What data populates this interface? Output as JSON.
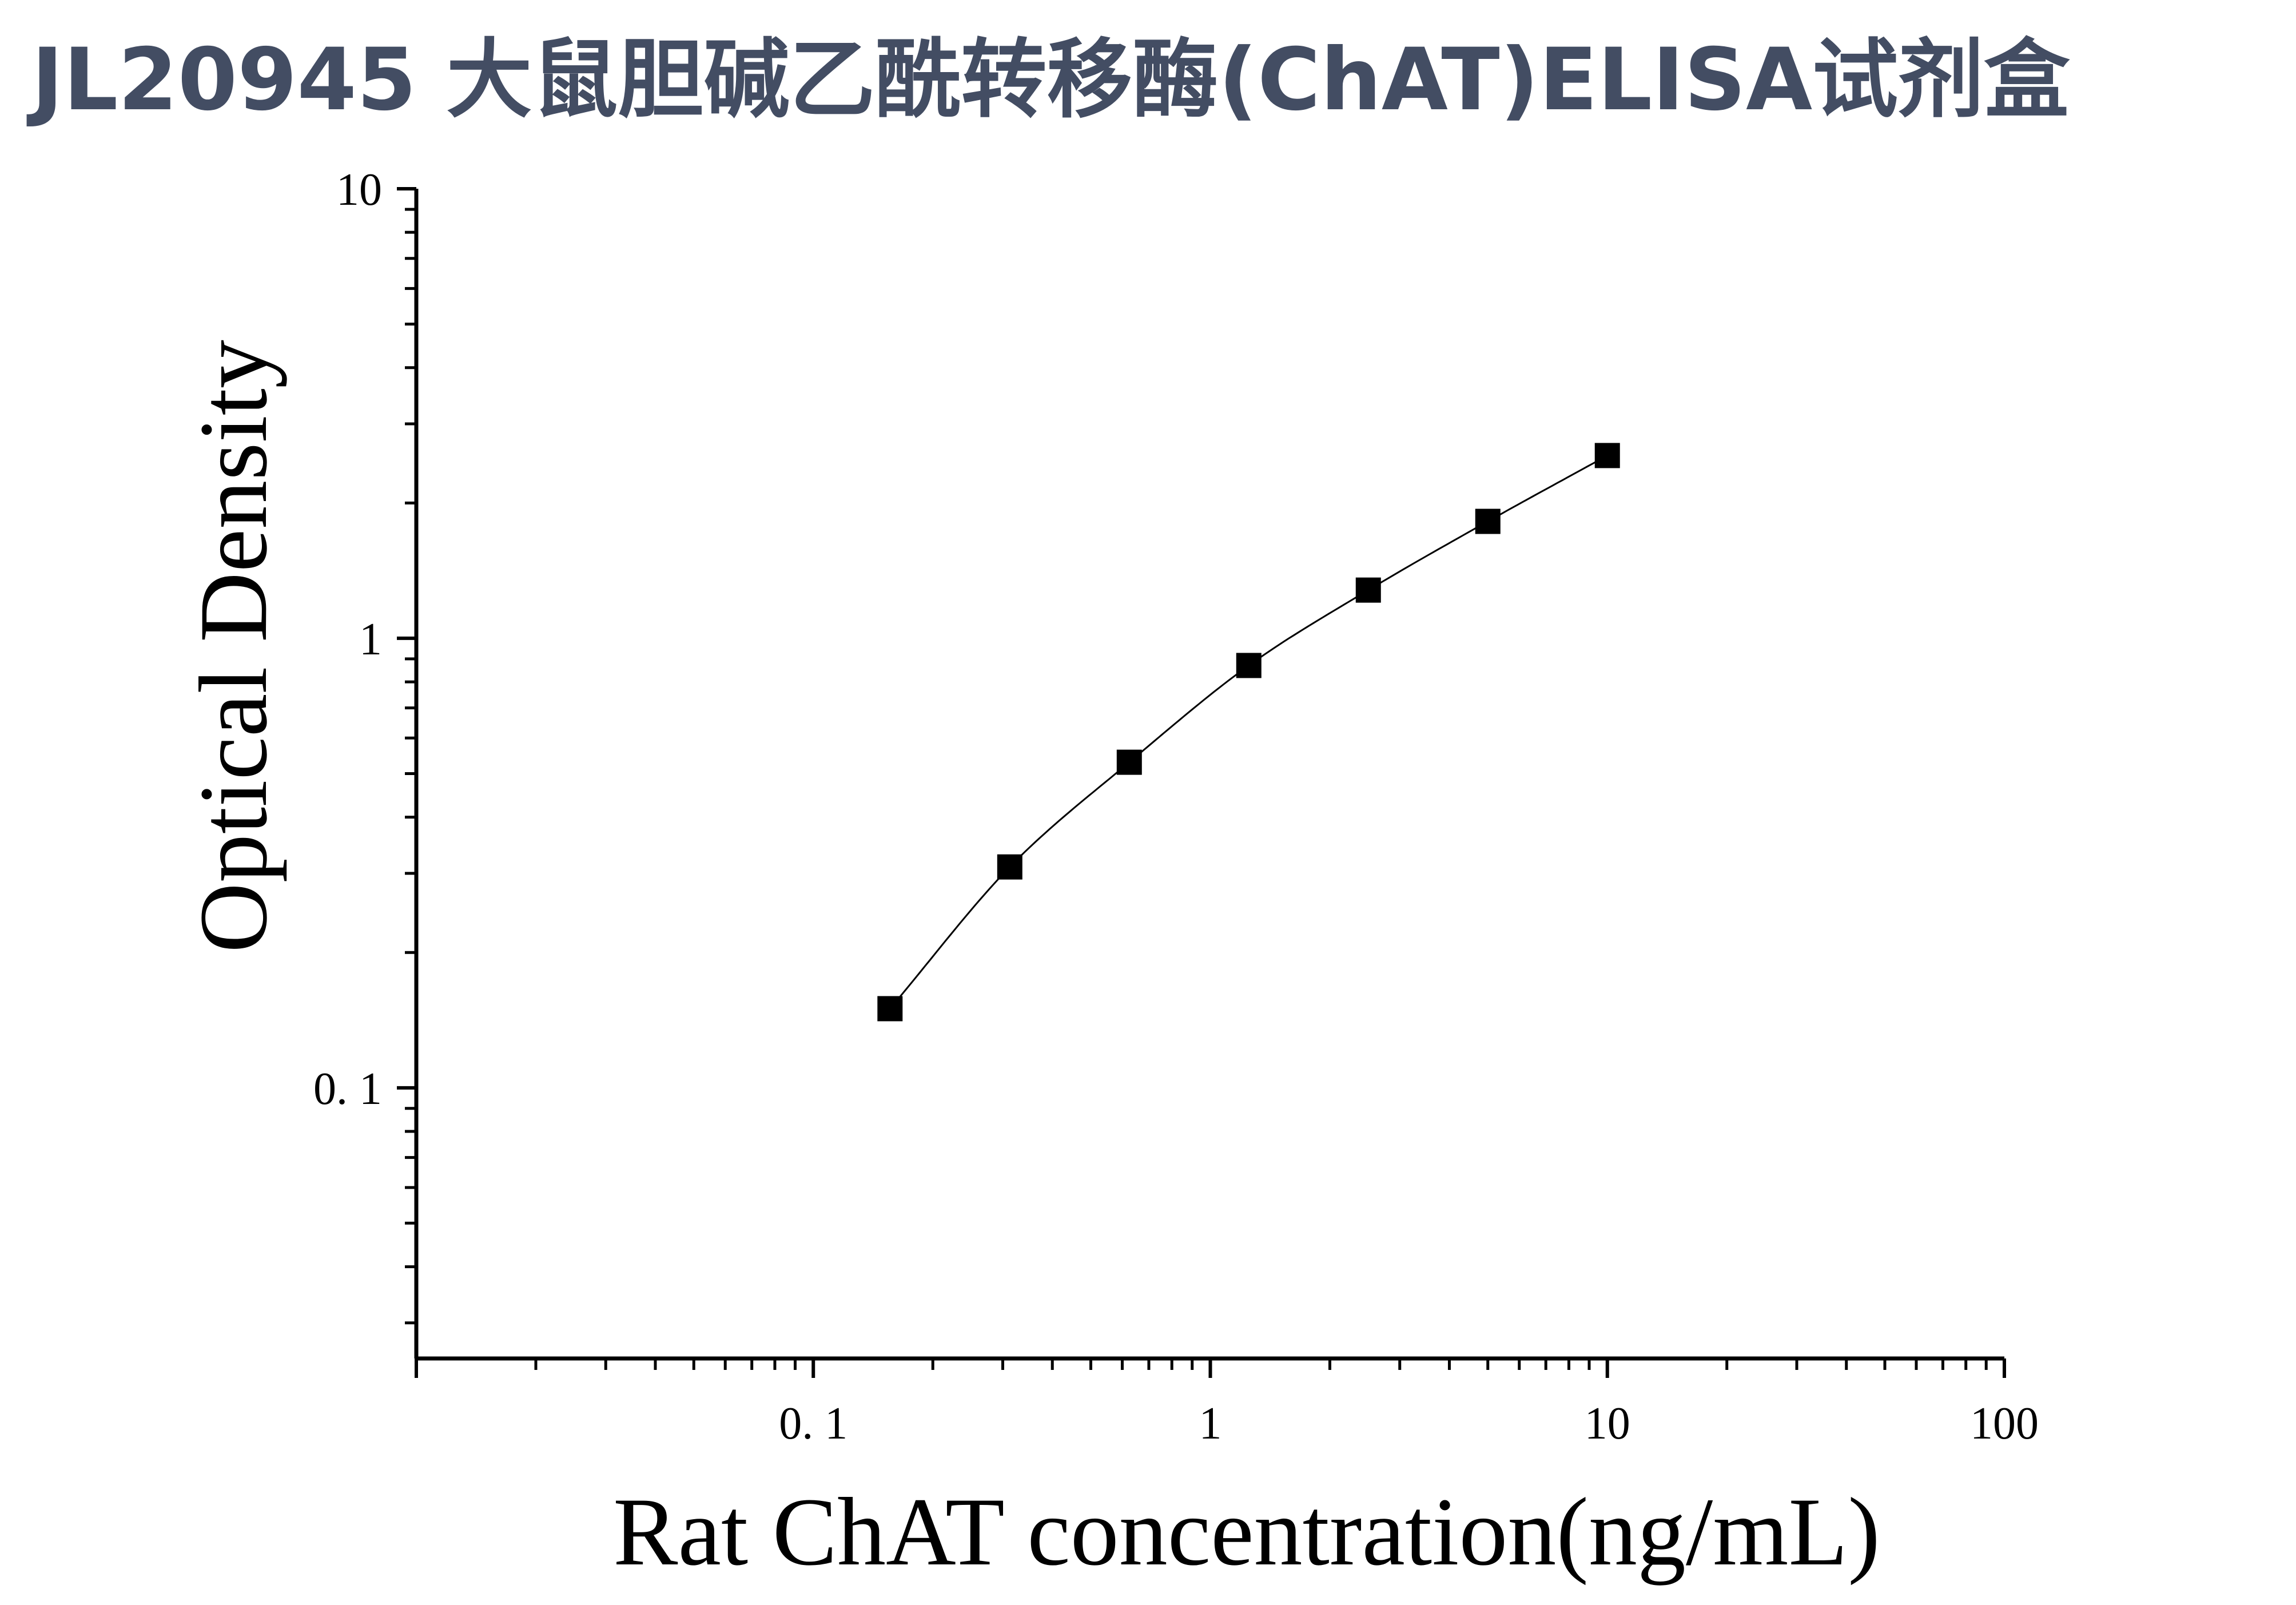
{
  "title": "JL20945 大鼠胆碱乙酰转移酶(ChAT)ELISA试剂盒",
  "chart_data": {
    "type": "scatter",
    "title": "JL20945 大鼠胆碱乙酰转移酶(ChAT)ELISA试剂盒",
    "xlabel": "Rat ChAT concentration(ng/mL)",
    "ylabel": "Optical Density",
    "x_scale": "log",
    "y_scale": "log",
    "xlim": [
      0.01,
      100
    ],
    "ylim": [
      0.025,
      10
    ],
    "x_ticks": [
      {
        "value": 0.1,
        "label": "0. 1"
      },
      {
        "value": 1,
        "label": "1"
      },
      {
        "value": 10,
        "label": "10"
      },
      {
        "value": 100,
        "label": "100"
      }
    ],
    "y_ticks": [
      {
        "value": 0.1,
        "label": "0. 1"
      },
      {
        "value": 1,
        "label": "1"
      },
      {
        "value": 10,
        "label": "10"
      }
    ],
    "grid": false,
    "marker": "square",
    "fit_line": "smooth curve through points",
    "color": "#000000",
    "series": [
      {
        "x": [
          0.156,
          0.3125,
          0.625,
          1.25,
          2.5,
          5,
          10
        ],
        "y": [
          0.15,
          0.31,
          0.53,
          0.87,
          1.28,
          1.82,
          2.55
        ]
      }
    ]
  }
}
